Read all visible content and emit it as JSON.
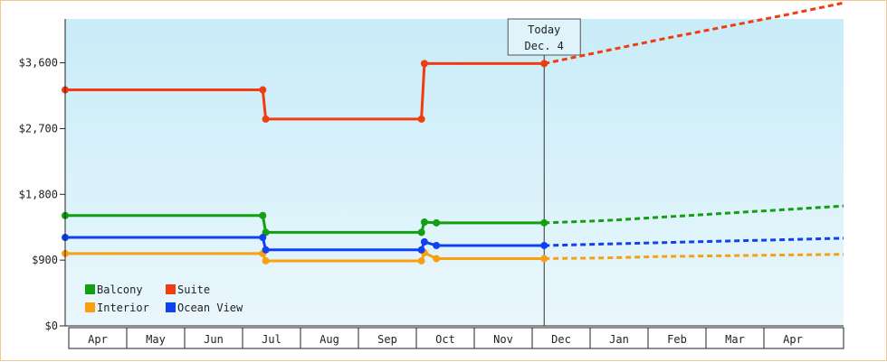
{
  "chart_data": {
    "type": "line",
    "y_ticks": [
      "$0",
      "$900",
      "$1,800",
      "$2,700",
      "$3,600"
    ],
    "y_tick_values": [
      0,
      900,
      1800,
      2700,
      3600
    ],
    "ylim": [
      0,
      4200
    ],
    "x_months": [
      "Apr",
      "May",
      "Jun",
      "Jul",
      "Aug",
      "Sep",
      "Oct",
      "Nov",
      "Dec",
      "Jan",
      "Feb",
      "Mar",
      "Apr"
    ],
    "x_range_months": [
      0,
      13
    ],
    "today_marker": {
      "line1": "Today",
      "line2": "Dec. 4",
      "x": 8.0
    },
    "grid": false,
    "legend_position": "bottom-left",
    "series": [
      {
        "name": "Balcony",
        "color": "#10a010",
        "points": [
          [
            0,
            1510
          ],
          [
            3.3,
            1510
          ],
          [
            3.35,
            1280
          ],
          [
            5.95,
            1280
          ],
          [
            6.0,
            1420
          ],
          [
            6.2,
            1410
          ],
          [
            8.0,
            1410
          ]
        ],
        "forecast": [
          [
            8.0,
            1410
          ],
          [
            9.0,
            1440
          ],
          [
            10.0,
            1490
          ],
          [
            11.0,
            1540
          ],
          [
            12.0,
            1590
          ],
          [
            13.0,
            1640
          ]
        ]
      },
      {
        "name": "Suite",
        "color": "#f03c10",
        "points": [
          [
            0,
            3230
          ],
          [
            3.3,
            3230
          ],
          [
            3.35,
            2830
          ],
          [
            5.95,
            2830
          ],
          [
            6.0,
            3590
          ],
          [
            8.0,
            3590
          ]
        ],
        "forecast": [
          [
            8.0,
            3590
          ],
          [
            9.0,
            3760
          ],
          [
            10.0,
            3930
          ],
          [
            11.0,
            4090
          ],
          [
            12.0,
            4250
          ],
          [
            13.0,
            4420
          ]
        ]
      },
      {
        "name": "Interior",
        "color": "#f8a010",
        "points": [
          [
            0,
            990
          ],
          [
            3.3,
            990
          ],
          [
            3.35,
            890
          ],
          [
            5.95,
            890
          ],
          [
            6.0,
            1000
          ],
          [
            6.2,
            920
          ],
          [
            8.0,
            920
          ]
        ],
        "forecast": [
          [
            8.0,
            920
          ],
          [
            9.0,
            930
          ],
          [
            10.0,
            950
          ],
          [
            11.0,
            960
          ],
          [
            12.0,
            970
          ],
          [
            13.0,
            980
          ]
        ]
      },
      {
        "name": "Ocean View",
        "color": "#1040f0",
        "points": [
          [
            0,
            1210
          ],
          [
            3.3,
            1210
          ],
          [
            3.35,
            1040
          ],
          [
            5.95,
            1040
          ],
          [
            6.0,
            1150
          ],
          [
            6.2,
            1100
          ],
          [
            8.0,
            1100
          ]
        ],
        "forecast": [
          [
            8.0,
            1100
          ],
          [
            9.0,
            1120
          ],
          [
            10.0,
            1140
          ],
          [
            11.0,
            1160
          ],
          [
            12.0,
            1180
          ],
          [
            13.0,
            1200
          ]
        ]
      }
    ],
    "legend_order": [
      "Balcony",
      "Suite",
      "Interior",
      "Ocean View"
    ]
  }
}
